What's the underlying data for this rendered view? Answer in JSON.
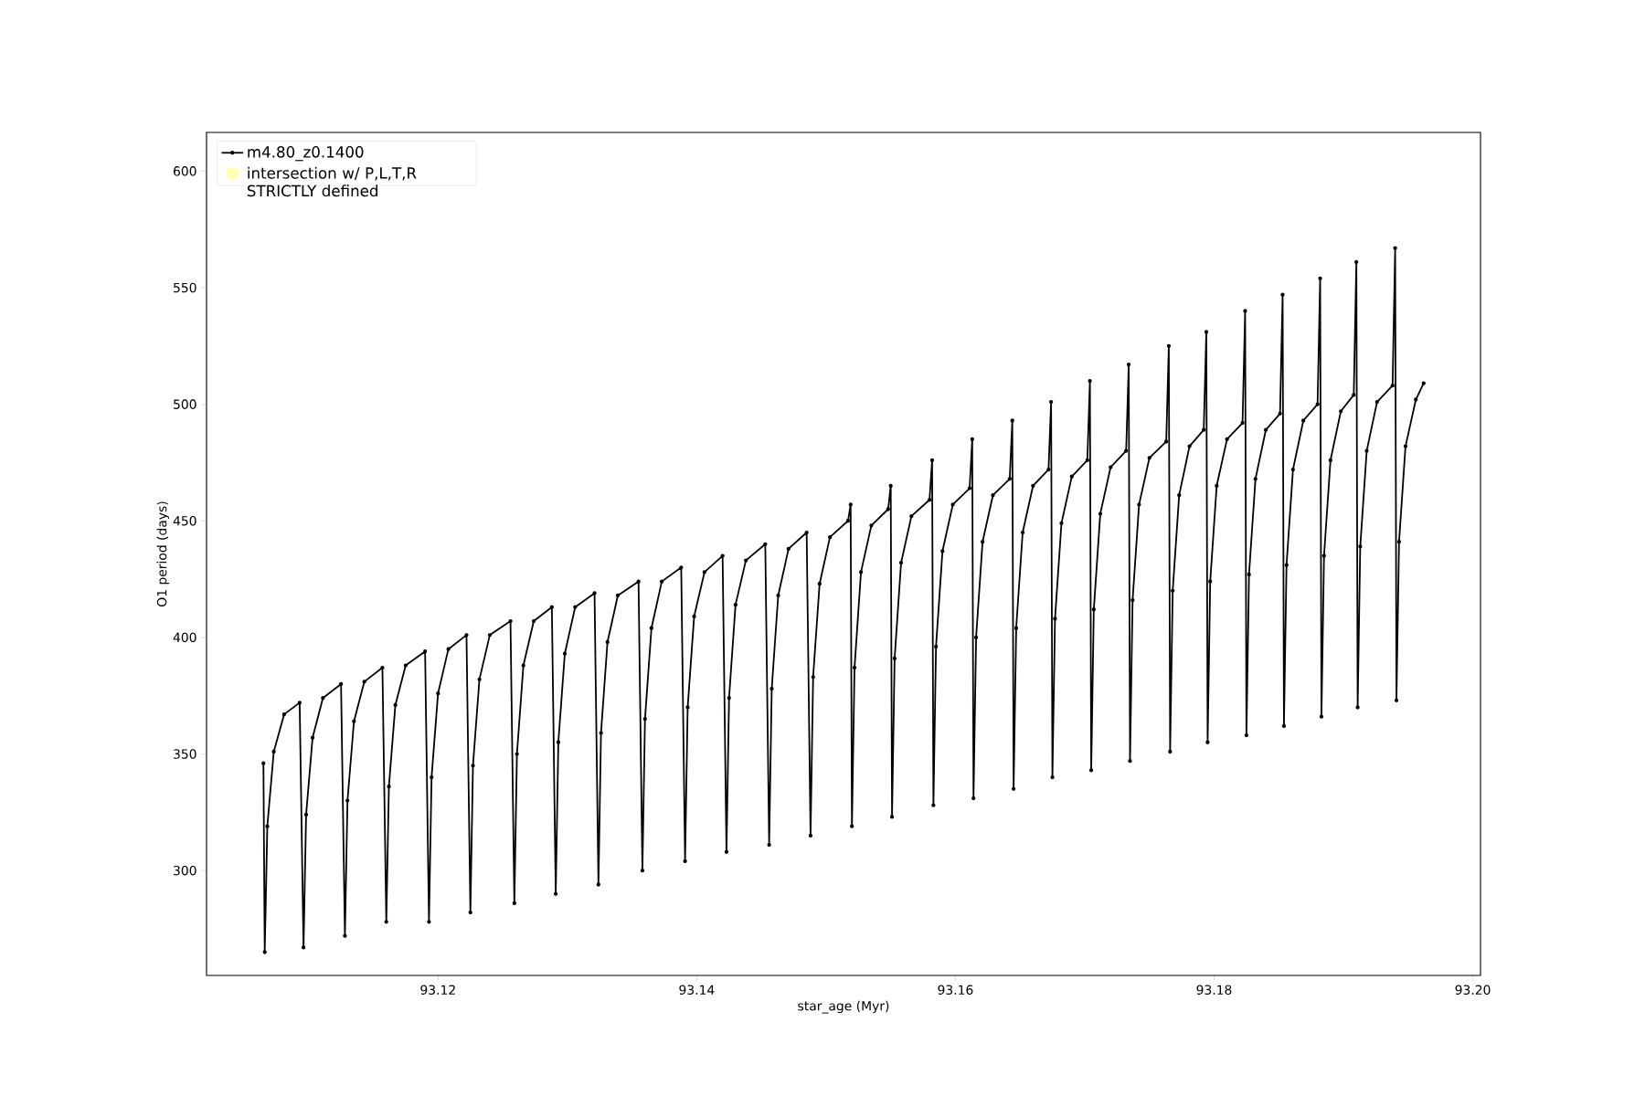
{
  "chart_data": {
    "type": "line",
    "xlabel": "star_age (Myr)",
    "ylabel": "O1 period (days)",
    "xlim": [
      93.1021,
      93.2006
    ],
    "ylim": [
      255,
      616.6
    ],
    "xticks": [
      93.12,
      93.14,
      93.16,
      93.18,
      {
        "value": 93.2,
        "label": "93.20"
      }
    ],
    "yticks": [
      300,
      350,
      400,
      450,
      500,
      550,
      600
    ],
    "grid": false,
    "legend": "top left",
    "series": [
      {
        "name": "m4.80_z0.1400",
        "marker": "circle",
        "color": "#000000",
        "x": [
          93.1065,
          93.1066,
          93.1068,
          93.1073,
          93.1081,
          93.1093,
          93.1096,
          93.1098,
          93.1103,
          93.1111,
          93.1125,
          93.1128,
          93.113,
          93.1135,
          93.1143,
          93.1157,
          93.116,
          93.1162,
          93.1167,
          93.1175,
          93.119,
          93.1193,
          93.1195,
          93.12,
          93.1208,
          93.1222,
          93.1225,
          93.1227,
          93.1232,
          93.124,
          93.1256,
          93.1259,
          93.1261,
          93.1266,
          93.1274,
          93.1288,
          93.1291,
          93.1293,
          93.1298,
          93.1306,
          93.1321,
          93.1324,
          93.1326,
          93.1331,
          93.1339,
          93.1355,
          93.1358,
          93.136,
          93.1365,
          93.1373,
          93.1388,
          93.1391,
          93.1393,
          93.1398,
          93.1406,
          93.142,
          93.1423,
          93.1425,
          93.143,
          93.1438,
          93.1453,
          93.1456,
          93.1458,
          93.1463,
          93.1471,
          93.1485,
          93.1488,
          93.149,
          93.1495,
          93.1503,
          93.1517,
          93.1519,
          93.152,
          93.1522,
          93.1527,
          93.1535,
          93.1548,
          93.155,
          93.1551,
          93.1553,
          93.1558,
          93.1566,
          93.158,
          93.1582,
          93.1583,
          93.1585,
          93.159,
          93.1598,
          93.1611,
          93.1613,
          93.1614,
          93.1616,
          93.1621,
          93.1629,
          93.1642,
          93.1644,
          93.1645,
          93.1647,
          93.1652,
          93.166,
          93.1672,
          93.1674,
          93.1675,
          93.1677,
          93.1682,
          93.169,
          93.1702,
          93.1704,
          93.1705,
          93.1707,
          93.1712,
          93.172,
          93.1732,
          93.1734,
          93.1735,
          93.1737,
          93.1742,
          93.175,
          93.1763,
          93.1765,
          93.1766,
          93.1768,
          93.1773,
          93.1781,
          93.1792,
          93.1794,
          93.1795,
          93.1797,
          93.1802,
          93.181,
          93.1822,
          93.1824,
          93.1825,
          93.1827,
          93.1832,
          93.184,
          93.1851,
          93.1853,
          93.1854,
          93.1856,
          93.1861,
          93.1869,
          93.188,
          93.1882,
          93.1883,
          93.1885,
          93.189,
          93.1898,
          93.1908,
          93.191,
          93.1911,
          93.1913,
          93.1918,
          93.1926,
          93.1938,
          93.194,
          93.1941,
          93.1943,
          93.1948,
          93.1956,
          93.1962
        ],
        "values": [
          346,
          265,
          319,
          351,
          367,
          372,
          267,
          324,
          357,
          374,
          380,
          272,
          330,
          364,
          381,
          387,
          278,
          336,
          371,
          388,
          394,
          278,
          340,
          376,
          395,
          401,
          282,
          345,
          382,
          401,
          407,
          286,
          350,
          388,
          407,
          413,
          290,
          355,
          393,
          413,
          419,
          294,
          359,
          398,
          418,
          424,
          300,
          365,
          404,
          424,
          430,
          304,
          370,
          409,
          428,
          435,
          308,
          374,
          414,
          433,
          440,
          311,
          378,
          418,
          438,
          445,
          315,
          383,
          423,
          443,
          450,
          457,
          319,
          387,
          428,
          448,
          455,
          465,
          323,
          391,
          432,
          452,
          459,
          476,
          328,
          396,
          437,
          457,
          464,
          485,
          331,
          400,
          441,
          461,
          468,
          493,
          335,
          404,
          445,
          465,
          472,
          501,
          340,
          408,
          449,
          469,
          476,
          510,
          343,
          412,
          453,
          473,
          480,
          517,
          347,
          416,
          457,
          477,
          484,
          525,
          351,
          420,
          461,
          482,
          489,
          531,
          355,
          424,
          465,
          485,
          492,
          540,
          358,
          427,
          468,
          489,
          496,
          547,
          362,
          431,
          472,
          493,
          500,
          554,
          366,
          435,
          476,
          497,
          504,
          561,
          370,
          439,
          480,
          501,
          508,
          567,
          373,
          441,
          482,
          502,
          509
        ]
      },
      {
        "name": "intersection w/ P,L,T,R STRICTLY defined",
        "type": "scatter",
        "marker": "circle",
        "color": "#ffffb3"
      }
    ]
  }
}
